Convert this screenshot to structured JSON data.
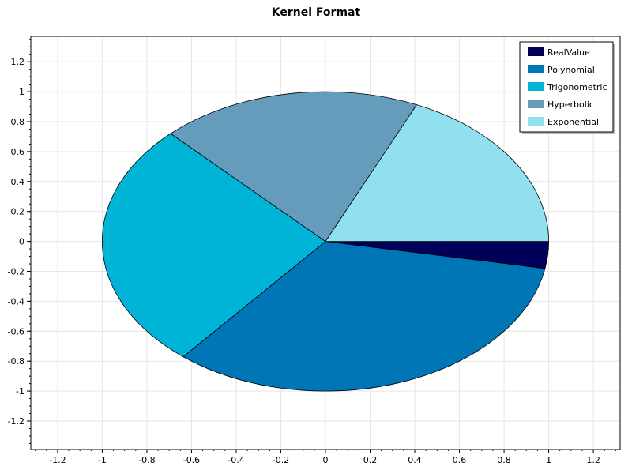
{
  "chart_data": {
    "type": "pie",
    "title": "Kernel Format",
    "xlabel": "",
    "ylabel": "",
    "xlim": [
      -1.32,
      1.32
    ],
    "ylim": [
      -1.39,
      1.37
    ],
    "x_ticks": [
      "-1.2",
      "-1",
      "-0.8",
      "-0.6",
      "-0.4",
      "-0.2",
      "0",
      "0.2",
      "0.4",
      "0.6",
      "0.8",
      "1",
      "1.2"
    ],
    "y_ticks": [
      "1.2",
      "1",
      "0.8",
      "0.6",
      "0.4",
      "0.2",
      "0",
      "-0.2",
      "-0.4",
      "-0.6",
      "-0.8",
      "-1",
      "-1.2"
    ],
    "grid": true,
    "legend_position": "top-right",
    "pie_radius": 1,
    "start_angle_deg": 0,
    "direction": "clockwise",
    "slices": [
      {
        "label": "RealValue",
        "value": 2.9,
        "color": "#00005a"
      },
      {
        "label": "Polynomial",
        "value": 33.1,
        "color": "#0076b6"
      },
      {
        "label": "Trigonometric",
        "value": 26.8,
        "color": "#00b4d8"
      },
      {
        "label": "Hyperbolic",
        "value": 18.9,
        "color": "#659cbc"
      },
      {
        "label": "Exponential",
        "value": 18.3,
        "color": "#90e0ef"
      }
    ]
  }
}
